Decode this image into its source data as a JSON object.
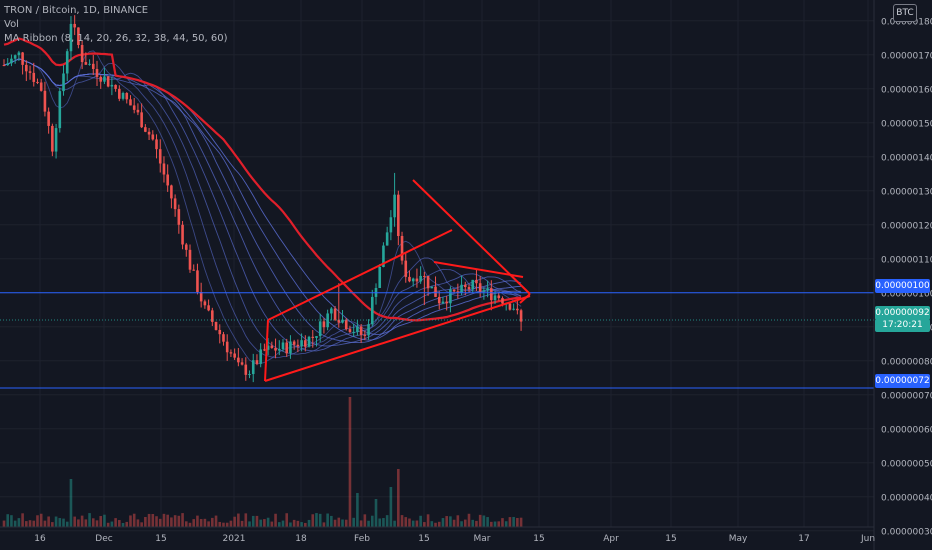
{
  "legend": {
    "symbol": "TRON / Bitcoin, 1D, BINANCE",
    "volume": "Vol",
    "ribbon": "MA Ribbon (8, 14, 20, 26, 32, 38, 44, 50, 60)"
  },
  "currency": "BTC",
  "price_tags": {
    "resistance": "0.00000100",
    "current": "0.00000092",
    "timer": "17:20:21",
    "support": "0.00000072"
  },
  "colors": {
    "background": "#131722",
    "up": "#26a69a",
    "down": "#ef5350",
    "ribbon": "#5b6fd6",
    "ma_long": "#e01f2b",
    "drawing": "#ff1a1a",
    "hline": "#2962ff"
  },
  "chart_data": {
    "type": "candlestick",
    "x_ticks": [
      "16",
      "Dec",
      "15",
      "2021",
      "18",
      "Feb",
      "15",
      "Mar",
      "15",
      "Apr",
      "15",
      "May",
      "17",
      "Jun"
    ],
    "y_ticks": [
      "0.00000180",
      "0.00000170",
      "0.00000160",
      "0.00000150",
      "0.00000140",
      "0.00000130",
      "0.00000120",
      "0.00000110",
      "0.00000100",
      "0.00000090",
      "0.00000080",
      "0.00000070",
      "0.00000060",
      "0.00000050",
      "0.00000040",
      "0.00000030"
    ],
    "ylim": [
      3e-07,
      1.8e-06
    ],
    "horizontal_lines": [
      1e-06,
      7.2e-07
    ],
    "current_price": 9.2e-07,
    "triangle_pattern": {
      "upper": [
        [
          1.29e-06,
          "Feb 8"
        ],
        [
          1.01e-06,
          "Mar 11"
        ]
      ],
      "lower": [
        [
          7.2e-07,
          "Jan 7"
        ],
        [
          9.9e-07,
          "Mar 11"
        ]
      ]
    }
  }
}
